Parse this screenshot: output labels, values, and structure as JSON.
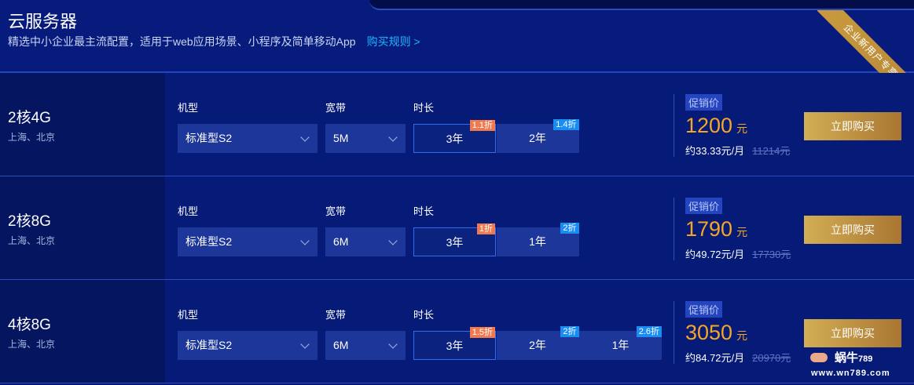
{
  "header": {
    "title": "云服务器",
    "subtitle": "精选中小企业最主流配置，适用于web应用场景、小程序及简单移动App",
    "rules_link": "购买规则 >",
    "ribbon": "企业新用户专享"
  },
  "labels": {
    "model": "机型",
    "bandwidth": "宽带",
    "duration": "时长",
    "promo": "促销价",
    "currency": "元",
    "buy": "立即购买"
  },
  "products": [
    {
      "name": "2核4G",
      "regions": "上海、北京",
      "model": "标准型S2",
      "bandwidth": "5M",
      "price": "1200",
      "monthly": "约33.33元/月",
      "original": "11214元",
      "durations": [
        {
          "label": "3年",
          "discount": "1.1折",
          "selected": true
        },
        {
          "label": "2年",
          "discount": "1.4折",
          "selected": false
        }
      ]
    },
    {
      "name": "2核8G",
      "regions": "上海、北京",
      "model": "标准型S2",
      "bandwidth": "6M",
      "price": "1790",
      "monthly": "约49.72元/月",
      "original": "17730元",
      "durations": [
        {
          "label": "3年",
          "discount": "1折",
          "selected": true
        },
        {
          "label": "1年",
          "discount": "2折",
          "selected": false
        }
      ]
    },
    {
      "name": "4核8G",
      "regions": "上海、北京",
      "model": "标准型S2",
      "bandwidth": "6M",
      "price": "3050",
      "monthly": "约84.72元/月",
      "original": "20970元",
      "durations": [
        {
          "label": "3年",
          "discount": "1.5折",
          "selected": true
        },
        {
          "label": "2年",
          "discount": "2折",
          "selected": false
        },
        {
          "label": "1年",
          "discount": "2.6折",
          "selected": false
        }
      ]
    }
  ],
  "watermark": {
    "name": "蜗牛",
    "num": "789",
    "url": "www.wn789.com"
  }
}
